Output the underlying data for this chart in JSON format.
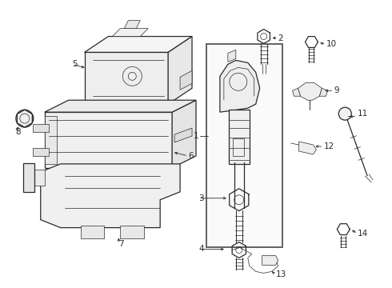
{
  "background_color": "#ffffff",
  "line_color": "#2a2a2a",
  "label_color": "#000000",
  "fig_width": 4.9,
  "fig_height": 3.6,
  "dpi": 100,
  "lw_main": 0.9,
  "lw_thin": 0.5,
  "lw_med": 0.7,
  "label_fs": 7.0,
  "arrow_lw": 0.6
}
